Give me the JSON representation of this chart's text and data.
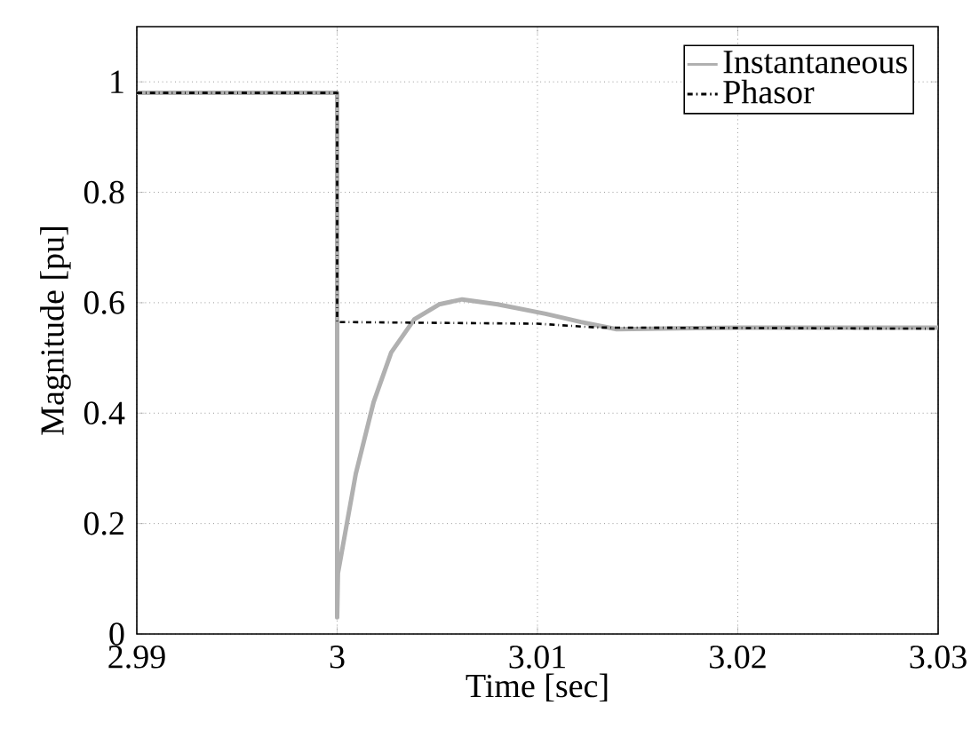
{
  "chart_data": {
    "type": "line",
    "xlabel": "Time [sec]",
    "ylabel": "Magnitude [pu]",
    "xlim": [
      2.99,
      3.03
    ],
    "ylim": [
      0,
      1.1
    ],
    "xticks": [
      2.99,
      3,
      3.01,
      3.02,
      3.03
    ],
    "yticks": [
      0,
      0.2,
      0.4,
      0.6,
      0.8,
      1
    ],
    "grid": true,
    "legend": "top right",
    "series": [
      {
        "name": "Instantaneous",
        "color": "#b0b0b0",
        "line_style": "solid",
        "x": [
          2.99,
          3.0,
          3.0,
          3.00004,
          3.00093,
          3.00182,
          3.0027,
          3.00385,
          3.00509,
          3.00624,
          3.00801,
          3.0104,
          3.01217,
          3.01395,
          3.02,
          3.03
        ],
        "values": [
          0.98,
          0.98,
          0.03,
          0.11,
          0.29,
          0.42,
          0.51,
          0.57,
          0.597,
          0.606,
          0.597,
          0.58,
          0.565,
          0.552,
          0.555,
          0.555
        ]
      },
      {
        "name": "Phasor",
        "color": "#000000",
        "line_style": "dashdot",
        "x": [
          2.99,
          3.0,
          3.0,
          3.01,
          3.013,
          3.03
        ],
        "values": [
          0.98,
          0.98,
          0.565,
          0.562,
          0.555,
          0.553
        ]
      }
    ]
  }
}
